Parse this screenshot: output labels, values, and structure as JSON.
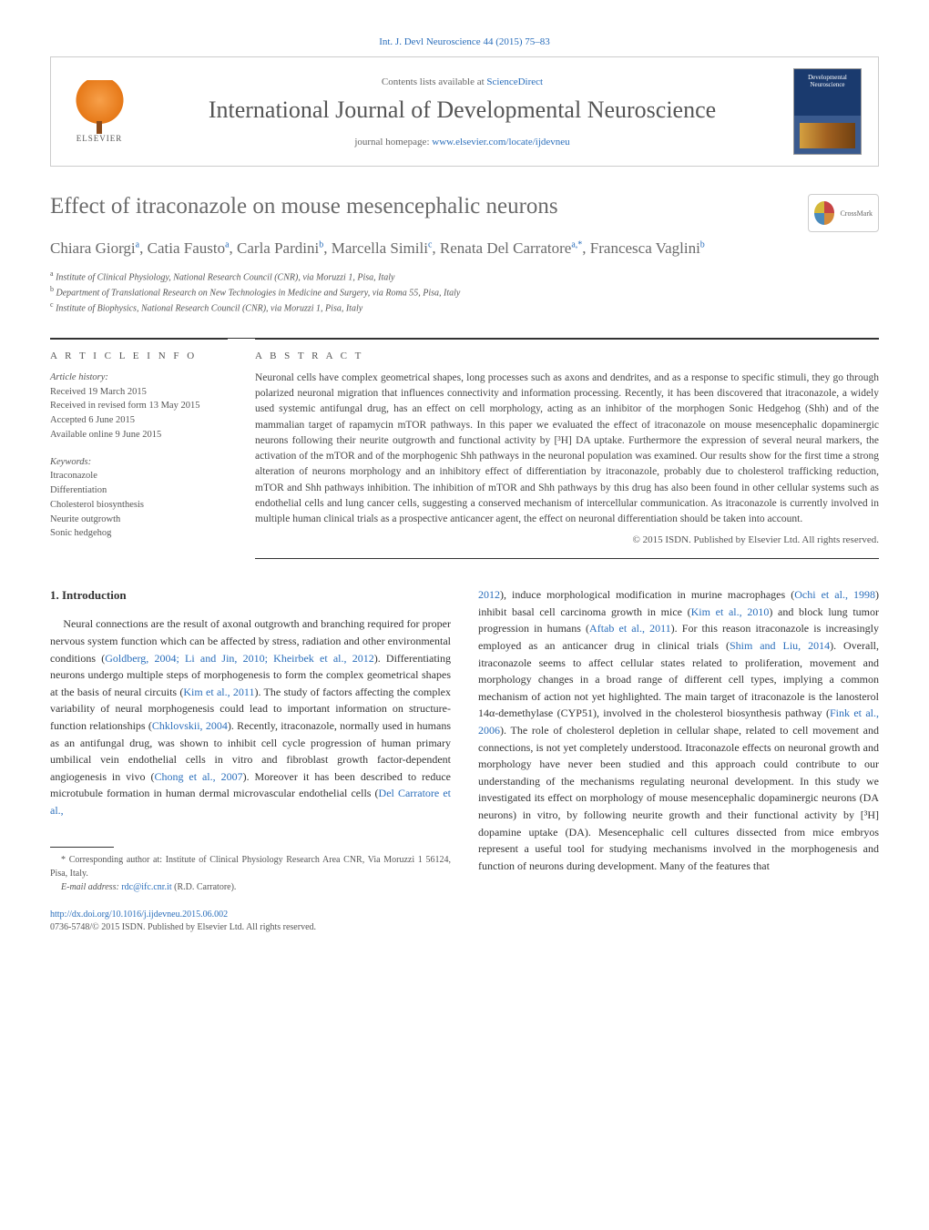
{
  "colors": {
    "link": "#2a6ebb",
    "body_text": "#333333",
    "muted_text": "#555555",
    "heading_gray": "#6a6a6a",
    "border": "#cccccc",
    "rule": "#333333",
    "background": "#ffffff",
    "elsevier_orange": "#e67817",
    "cover_blue_top": "#1a3a6e",
    "cover_blue_bottom": "#3a5a8e"
  },
  "typography": {
    "body_family": "Georgia, 'Times New Roman', serif",
    "journal_name_size_pt": 20,
    "title_size_pt": 19,
    "authors_size_pt": 13,
    "body_size_pt": 9,
    "abstract_size_pt": 9,
    "footnote_size_pt": 7.5
  },
  "header": {
    "top_citation": "Int. J. Devl Neuroscience 44 (2015) 75–83",
    "contents_prefix": "Contents lists available at ",
    "contents_link": "ScienceDirect",
    "journal_name": "International Journal of Developmental Neuroscience",
    "homepage_prefix": "journal homepage: ",
    "homepage_url": "www.elsevier.com/locate/ijdevneu",
    "elsevier_label": "ELSEVIER",
    "cover_text": "Developmental Neuroscience",
    "crossmark_label": "CrossMark"
  },
  "article": {
    "title": "Effect of itraconazole on mouse mesencephalic neurons",
    "authors_html": "Chiara Giorgi<sup>a</sup>, Catia Fausto<sup>a</sup>, Carla Pardini<sup>b</sup>, Marcella Simili<sup>c</sup>, Renata Del Carratore<sup>a,*</sup>, Francesca Vaglini<sup>b</sup>",
    "affiliations": [
      {
        "sup": "a",
        "text": "Institute of Clinical Physiology, National Research Council (CNR), via Moruzzi 1, Pisa, Italy"
      },
      {
        "sup": "b",
        "text": "Department of Translational Research on New Technologies in Medicine and Surgery, via Roma 55, Pisa, Italy"
      },
      {
        "sup": "c",
        "text": "Institute of Biophysics, National Research Council (CNR), via Moruzzi 1, Pisa, Italy"
      }
    ]
  },
  "info": {
    "heading": "a r t i c l e   i n f o",
    "history_label": "Article history:",
    "history": [
      "Received 19 March 2015",
      "Received in revised form 13 May 2015",
      "Accepted 6 June 2015",
      "Available online 9 June 2015"
    ],
    "keywords_label": "Keywords:",
    "keywords": [
      "Itraconazole",
      "Differentiation",
      "Cholesterol biosynthesis",
      "Neurite outgrowth",
      "Sonic hedgehog"
    ]
  },
  "abstract": {
    "heading": "a b s t r a c t",
    "text": "Neuronal cells have complex geometrical shapes, long processes such as axons and dendrites, and as a response to specific stimuli, they go through polarized neuronal migration that influences connectivity and information processing. Recently, it has been discovered that itraconazole, a widely used systemic antifungal drug, has an effect on cell morphology, acting as an inhibitor of the morphogen Sonic Hedgehog (Shh) and of the mammalian target of rapamycin mTOR pathways. In this paper we evaluated the effect of itraconazole on mouse mesencephalic dopaminergic neurons following their neurite outgrowth and functional activity by [³H] DA uptake. Furthermore the expression of several neural markers, the activation of the mTOR and of the morphogenic Shh pathways in the neuronal population was examined. Our results show for the first time a strong alteration of neurons morphology and an inhibitory effect of differentiation by itraconazole, probably due to cholesterol trafficking reduction, mTOR and Shh pathways inhibition. The inhibition of mTOR and Shh pathways by this drug has also been found in other cellular systems such as endothelial cells and lung cancer cells, suggesting a conserved mechanism of intercellular communication. As itraconazole is currently involved in multiple human clinical trials as a prospective anticancer agent, the effect on neuronal differentiation should be taken into account.",
    "copyright": "© 2015 ISDN. Published by Elsevier Ltd. All rights reserved."
  },
  "body": {
    "intro_heading": "1. Introduction",
    "col1_p1": "Neural connections are the result of axonal outgrowth and branching required for proper nervous system function which can be affected by stress, radiation and other environmental conditions (<span class=\"ref\">Goldberg, 2004; Li and Jin, 2010; Kheirbek et al., 2012</span>). Differentiating neurons undergo multiple steps of morphogenesis to form the complex geometrical shapes at the basis of neural circuits (<span class=\"ref\">Kim et al., 2011</span>). The study of factors affecting the complex variability of neural morphogenesis could lead to important information on structure-function relationships (<span class=\"ref\">Chklovskii, 2004</span>). Recently, itraconazole, normally used in humans as an antifungal drug, was shown to inhibit cell cycle progression of human primary umbilical vein endothelial cells in vitro and fibroblast growth factor-dependent angiogenesis in vivo (<span class=\"ref\">Chong et al., 2007</span>). Moreover it has been described to reduce microtubule formation in human dermal microvascular endothelial cells (<span class=\"ref\">Del Carratore et al.,</span>",
    "col2_p1": "<span class=\"ref\">2012</span>), induce morphological modification in murine macrophages (<span class=\"ref\">Ochi et al., 1998</span>) inhibit basal cell carcinoma growth in mice (<span class=\"ref\">Kim et al., 2010</span>) and block lung tumor progression in humans (<span class=\"ref\">Aftab et al., 2011</span>). For this reason itraconazole is increasingly employed as an anticancer drug in clinical trials (<span class=\"ref\">Shim and Liu, 2014</span>). Overall, itraconazole seems to affect cellular states related to proliferation, movement and morphology changes in a broad range of different cell types, implying a common mechanism of action not yet highlighted. The main target of itraconazole is the lanosterol 14α-demethylase (CYP51), involved in the cholesterol biosynthesis pathway (<span class=\"ref\">Fink et al., 2006</span>). The role of cholesterol depletion in cellular shape, related to cell movement and connections, is not yet completely understood. Itraconazole effects on neuronal growth and morphology have never been studied and this approach could contribute to our understanding of the mechanisms regulating neuronal development. In this study we investigated its effect on morphology of mouse mesencephalic dopaminergic neurons (DA neurons) in vitro, by following neurite growth and their functional activity by [³H] dopamine uptake (DA). Mesencephalic cell cultures dissected from mice embryos represent a useful tool for studying mechanisms involved in the morphogenesis and function of neurons during development. Many of the features that"
  },
  "footnote": {
    "corresponding": "* Corresponding author at: Institute of Clinical Physiology Research Area CNR, Via Moruzzi 1 56124, Pisa, Italy.",
    "email_label": "E-mail address: ",
    "email": "rdc@ifc.cnr.it",
    "email_suffix": " (R.D. Carratore)."
  },
  "doi": {
    "url": "http://dx.doi.org/10.1016/j.ijdevneu.2015.06.002",
    "issn_line": "0736-5748/© 2015 ISDN. Published by Elsevier Ltd. All rights reserved."
  }
}
